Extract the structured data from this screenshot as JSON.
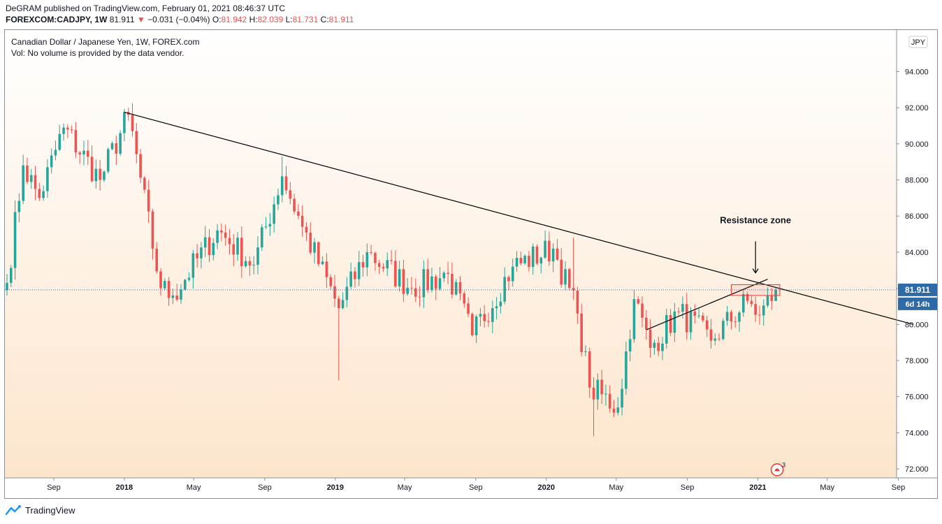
{
  "header": {
    "publisher": "DeGRAM published on TradingView.com, February 01, 2021 08:46:37 UTC",
    "symbol": "FOREXCOM:CADJPY, 1W",
    "last": "81.911",
    "arrow": "▼",
    "change": "−0.031 (−0.04%)",
    "o_label": "O:",
    "o_value": "81.942",
    "h_label": "H:",
    "h_value": "82.039",
    "l_label": "L:",
    "l_value": "81.731",
    "c_label": "C:",
    "c_value": "81.911"
  },
  "legend": {
    "title": "Canadian Dollar / Japanese Yen, 1W, FOREX.com",
    "volume": "Vol: No volume is provided by the data vendor."
  },
  "footer": {
    "brand": "TradingView"
  },
  "colors": {
    "up": "#26a69a",
    "down": "#ef5350",
    "bg_top": "#ffffff",
    "bg_bottom": "#fde7cf",
    "price_badge": "#2d6aa6",
    "annotation": "#000000",
    "zone": "#e53935"
  },
  "chart_data": {
    "type": "candlestick",
    "currency": "JPY",
    "y_ticks": [
      "94.000",
      "92.000",
      "90.000",
      "88.000",
      "86.000",
      "84.000",
      "82.000",
      "80.000",
      "78.000",
      "76.000",
      "74.000",
      "72.000"
    ],
    "y_tick_values": [
      94,
      92,
      90,
      88,
      86,
      84,
      82,
      80,
      78,
      76,
      74,
      72
    ],
    "ylim": [
      71.5,
      96.3
    ],
    "x_labels": [
      "Sep",
      "2018",
      "May",
      "Sep",
      "2019",
      "May",
      "Sep",
      "2020",
      "May",
      "Sep",
      "2021",
      "May",
      "Sep"
    ],
    "x_labels_bold": [
      "2018",
      "2019",
      "2020",
      "2021"
    ],
    "current_price": "81.911",
    "countdown": "6d 14h",
    "annotation": "Resistance zone",
    "events_badge": "3",
    "anchors": [
      {
        "date": "2017-06-12",
        "close": 82.3
      },
      {
        "date": "2017-07-10",
        "close": 88.8
      },
      {
        "date": "2017-08-07",
        "close": 87.0
      },
      {
        "date": "2017-09-18",
        "close": 90.9
      },
      {
        "date": "2017-11-20",
        "close": 88.0
      },
      {
        "date": "2018-01-08",
        "close": 91.6
      },
      {
        "date": "2018-03-05",
        "close": 82.0
      },
      {
        "date": "2018-03-26",
        "close": 81.6
      },
      {
        "date": "2018-06-11",
        "close": 85.2
      },
      {
        "date": "2018-08-13",
        "close": 83.3
      },
      {
        "date": "2018-10-01",
        "close": 88.2
      },
      {
        "date": "2018-11-05",
        "close": 85.4
      },
      {
        "date": "2019-01-07",
        "close": 80.9
      },
      {
        "date": "2019-02-25",
        "close": 84.0
      },
      {
        "date": "2019-05-13",
        "close": 82.0
      },
      {
        "date": "2019-07-15",
        "close": 82.8
      },
      {
        "date": "2019-08-26",
        "close": 79.4
      },
      {
        "date": "2019-11-04",
        "close": 83.2
      },
      {
        "date": "2020-01-13",
        "close": 84.2
      },
      {
        "date": "2020-02-24",
        "close": 80.6
      },
      {
        "date": "2020-03-16",
        "close": 76.5
      },
      {
        "date": "2020-05-04",
        "close": 75.4
      },
      {
        "date": "2020-06-01",
        "close": 81.4
      },
      {
        "date": "2020-06-29",
        "close": 78.7
      },
      {
        "date": "2020-08-17",
        "close": 80.7
      },
      {
        "date": "2020-10-12",
        "close": 79.1
      },
      {
        "date": "2020-12-14",
        "close": 81.3
      },
      {
        "date": "2021-01-04",
        "close": 80.5
      },
      {
        "date": "2021-02-01",
        "close": 81.911
      }
    ],
    "trendlines": [
      {
        "name": "long-term-resistance",
        "from": {
          "date": "2018-01-01",
          "price": 91.75
        },
        "to": {
          "date": "2021-09-27",
          "price": 80.0
        }
      },
      {
        "name": "rising-support",
        "from": {
          "date": "2020-06-22",
          "price": 79.7
        },
        "to": {
          "date": "2021-01-18",
          "price": 82.5
        }
      }
    ],
    "zone": {
      "from": "2020-11-16",
      "to": "2021-02-08",
      "top": 82.2,
      "bottom": 81.6
    },
    "arrow": {
      "date": "2020-12-28",
      "from": 84.6,
      "to": 82.85
    }
  }
}
